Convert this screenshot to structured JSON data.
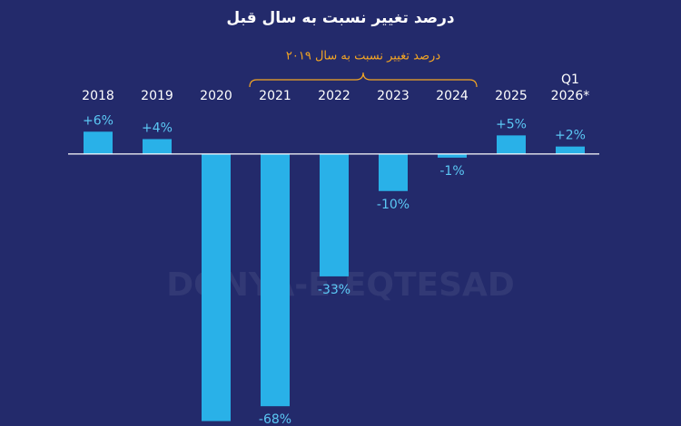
{
  "chart_data": {
    "type": "bar",
    "title": "درصد تغییر نسبت به سال قبل",
    "annotation": "درصد تغییر نسبت به سال ۲۰۱۹",
    "watermark": "DONYA-E-EQTESAD",
    "categories": [
      "2018",
      "2019",
      "2020",
      "2021",
      "2022",
      "2023",
      "2024",
      "2025",
      "Q1 2026*"
    ],
    "values": [
      6,
      4,
      -72,
      -68,
      -33,
      -10,
      -1,
      5,
      2
    ],
    "value_labels": [
      "+6%",
      "+4%",
      null,
      "-68%",
      "-33%",
      "-10%",
      "-1%",
      "+5%",
      "+2%"
    ],
    "color": "#29b1e8",
    "ylim": [
      -72.6,
      9
    ]
  }
}
